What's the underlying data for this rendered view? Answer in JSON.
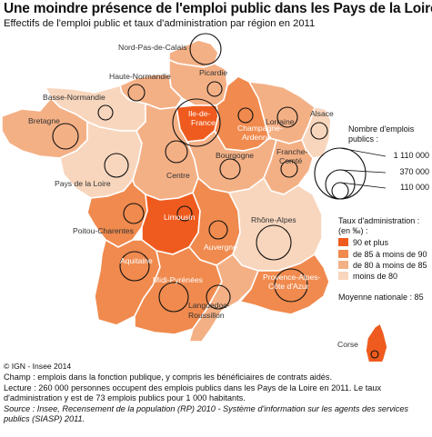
{
  "title": "Une moindre présence de l'emploi public dans les Pays de la Loire",
  "subtitle": "Effectifs de l'emploi public et taux d'administration par région en 2011",
  "colors": {
    "c1": "#ef5b1e",
    "c2": "#f08a4e",
    "c3": "#f4b085",
    "c4": "#f8d6bd"
  },
  "regions": [
    {
      "name": "Nord-Pas-de-Calais",
      "class": "c3"
    },
    {
      "name": "Picardie",
      "class": "c3"
    },
    {
      "name": "Haute-Normandie",
      "class": "c3"
    },
    {
      "name": "Basse-Normandie",
      "class": "c4"
    },
    {
      "name": "Bretagne",
      "class": "c3"
    },
    {
      "name": "Pays de la Loire",
      "class": "c4"
    },
    {
      "name": "Centre",
      "class": "c3"
    },
    {
      "name": "Ile-de-France",
      "class": "c1"
    },
    {
      "name": "Champagne-Ardenne",
      "class": "c2"
    },
    {
      "name": "Lorraine",
      "class": "c3"
    },
    {
      "name": "Alsace",
      "class": "c4"
    },
    {
      "name": "Bourgogne",
      "class": "c3"
    },
    {
      "name": "Franche-Comté",
      "class": "c3"
    },
    {
      "name": "Poitou-Charentes",
      "class": "c2"
    },
    {
      "name": "Limousin",
      "class": "c1"
    },
    {
      "name": "Auvergne",
      "class": "c2"
    },
    {
      "name": "Rhône-Alpes",
      "class": "c4"
    },
    {
      "name": "Aquitaine",
      "class": "c2"
    },
    {
      "name": "Midi-Pyrénées",
      "class": "c2"
    },
    {
      "name": "Languedoc-Roussillon",
      "class": "c3"
    },
    {
      "name": "Provence-Alpes-Côte d'Azur",
      "class": "c2"
    },
    {
      "name": "Corse",
      "class": "c1"
    }
  ],
  "map_labels": {
    "npdc": "Nord-Pas-de-Calais",
    "picardie": "Picardie",
    "hnorm": "Haute-Normandie",
    "bnorm": "Basse-Normandie",
    "bretagne": "Bretagne",
    "pdl": "Pays de la Loire",
    "centre": "Centre",
    "idf1": "Ile-de-",
    "idf2": "France",
    "ca1": "Champagne-",
    "ca2": "Ardenne",
    "lorraine": "Lorraine",
    "alsace": "Alsace",
    "bourgogne": "Bourgogne",
    "fc1": "Franche-",
    "fc2": "Comté",
    "pc": "Poitou-Charentes",
    "limousin": "Limousin",
    "auvergne": "Auvergne",
    "ra": "Rhône-Alpes",
    "aquitaine": "Aquitaine",
    "mp": "Midi-Pyrénées",
    "lr1": "Languedoc-",
    "lr2": "Roussillon",
    "paca1": "Provence-Alpes-",
    "paca2": "Côte d'Azur",
    "corse": "Corse"
  },
  "legend_size": {
    "title_line1": "Nombre d'emplois",
    "title_line2": "publics :",
    "values": [
      "1 110 000",
      "370 000",
      "110 000"
    ]
  },
  "legend_rate": {
    "title_line1": "Taux d'administration :",
    "title_line2": "(en ‰) :",
    "items": [
      {
        "label": "90 et plus",
        "color": "#ef5b1e"
      },
      {
        "label": "de 85 à moins de 90",
        "color": "#f08a4e"
      },
      {
        "label": "de 80 à moins de 85",
        "color": "#f4b085"
      },
      {
        "label": "moins de 80",
        "color": "#f8d6bd"
      }
    ]
  },
  "national_average": "Moyenne nationale : 85",
  "copyright": "© IGN - Insee 2014",
  "notes": {
    "champ": "Champ : emplois dans la fonction publique, y compris les bénéficiaires de contrats aidés.",
    "lecture": "Lecture : 260 000 personnes occupent des emplois publics dans les Pays de la Loire en 2011. Le taux d'administration y est de 73 emplois publics pour 1 000 habitants.",
    "source": "Source : Insee, Recensement de la population (RP) 2010 - Système d'information sur les agents des services publics (SIASP) 2011."
  }
}
